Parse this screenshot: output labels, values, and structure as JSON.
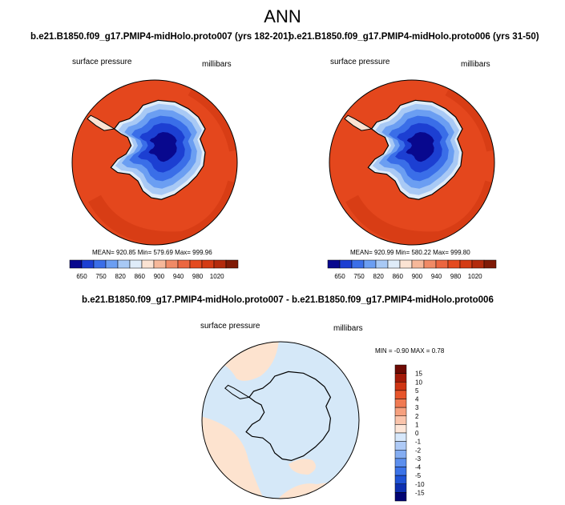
{
  "page": {
    "title": "ANN"
  },
  "colors": {
    "abs_scale": [
      "#08088e",
      "#1c3fd2",
      "#3a6ee8",
      "#6b9ef2",
      "#a8c9f5",
      "#dfecf9",
      "#fbe3d3",
      "#f6b89a",
      "#f08a66",
      "#eb6640",
      "#e44a1f",
      "#d43b14",
      "#b32a0c",
      "#7f1a06"
    ],
    "diff_scale": [
      "#020473",
      "#0d2fb0",
      "#1f53d6",
      "#3b73e8",
      "#5c8fee",
      "#84adf2",
      "#aecaf6",
      "#d7e8fb",
      "#fde6d8",
      "#fac4ab",
      "#f6a07e",
      "#f07a52",
      "#e7552b",
      "#cf3513",
      "#a41a08",
      "#6e0a03"
    ],
    "field_base": "#e4471d",
    "diff_base": "#d5e8f8",
    "diff_pos": "#fde3cf"
  },
  "chart_data": [
    {
      "type": "heatmap",
      "projection": "south-polar-stereographic",
      "case": "b.e21.B1850.f09_g17.PMIP4-midHolo.proto007 (yrs 182-201)",
      "variable": "surface pressure",
      "units": "millibars",
      "stats": "MEAN= 920.85  Min= 579.69  Max= 999.96",
      "mean": 920.85,
      "min": 579.69,
      "max": 999.96,
      "colorbar_labels": [
        "650",
        "750",
        "820",
        "860",
        "900",
        "940",
        "980",
        "1020"
      ]
    },
    {
      "type": "heatmap",
      "projection": "south-polar-stereographic",
      "case": "b.e21.B1850.f09_g17.PMIP4-midHolo.proto006 (yrs 31-50)",
      "variable": "surface pressure",
      "units": "millibars",
      "stats": "MEAN= 920.99  Min= 580.22  Max= 999.80",
      "mean": 920.99,
      "min": 580.22,
      "max": 999.8,
      "colorbar_labels": [
        "650",
        "750",
        "820",
        "860",
        "900",
        "940",
        "980",
        "1020"
      ]
    },
    {
      "type": "heatmap",
      "projection": "south-polar-stereographic",
      "case": "b.e21.B1850.f09_g17.PMIP4-midHolo.proto007 - b.e21.B1850.f09_g17.PMIP4-midHolo.proto006",
      "variable": "surface pressure",
      "units": "millibars",
      "stats": "MIN =  -0.90 MAX =   0.78",
      "min": -0.9,
      "max": 0.78,
      "colorbar_labels": [
        "15",
        "10",
        "5",
        "4",
        "3",
        "2",
        "1",
        "0",
        "-1",
        "-2",
        "-3",
        "-4",
        "-5",
        "-10",
        "-15"
      ]
    }
  ]
}
